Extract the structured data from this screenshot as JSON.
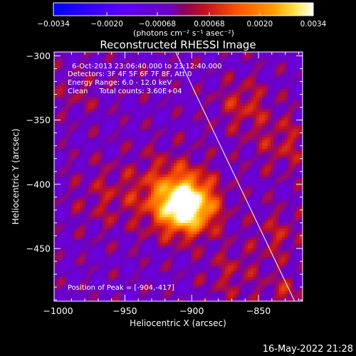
{
  "chart_data": {
    "type": "heatmap",
    "title": "Reconstructed RHESSI Image",
    "xlabel": "Heliocentric X (arcsec)",
    "ylabel": "Heliocentric Y (arcsec)",
    "xlim": [
      -1003,
      -817
    ],
    "ylim": [
      -491,
      -297
    ],
    "xticks": [
      -1000,
      -950,
      -900,
      -850
    ],
    "xtick_labels": [
      "−1000",
      "−950",
      "−900",
      "−850"
    ],
    "yticks": [
      -300,
      -350,
      -400,
      -450
    ],
    "ytick_labels": [
      "−300",
      "−350",
      "−400",
      "−450"
    ],
    "colorbar": {
      "range": [
        -0.0034,
        0.0034
      ],
      "ticks": [
        -0.0034,
        -0.002,
        -0.00068,
        0.00068,
        0.002,
        0.0034
      ],
      "tick_labels": [
        "−0.0034",
        "−0.0020",
        "−0.00068",
        "0.00068",
        "0.0020",
        "0.0034"
      ],
      "unit_label": "(photons cm⁻² s⁻¹ asec⁻²)",
      "colormap": [
        "#0000ff",
        "#6a00ff",
        "#6b00c2",
        "#c01020",
        "#ff5a00",
        "#ffa000",
        "#ffe44a",
        "#ffffff"
      ]
    },
    "peak": {
      "x": -904,
      "y": -417,
      "value": 0.0034
    },
    "limb_line": [
      [
        -912,
        -297
      ],
      [
        -823,
        -491
      ]
    ],
    "annotations": [
      "6-Oct-2013 23:06:40.000 to 23:12:40.000",
      "Detectors: 3F 4F 5F 6F 7F 8F, Att 0",
      "Energy Range: 6.0 - 12.0 keV",
      "Clean     Total counts: 3.60E+04"
    ],
    "peak_label": "Position of Peak = [-904,-417]"
  },
  "footer_timestamp": "16-May-2022 21:28"
}
